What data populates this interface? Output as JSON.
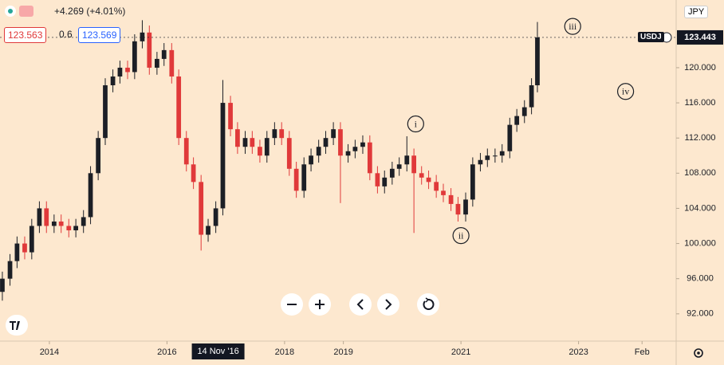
{
  "ui": {
    "change": "+4.269 (+4.01%)",
    "bid": "123.563",
    "spread": "0.6",
    "ask": "123.569",
    "currency": "JPY",
    "symbol_tag": "USDJ"
  },
  "chart_data": {
    "type": "candlestick",
    "x": [
      2013.2,
      2013.33,
      2013.45,
      2013.58,
      2013.7,
      2013.83,
      2013.95,
      2014.08,
      2014.2,
      2014.33,
      2014.45,
      2014.58,
      2014.7,
      2014.83,
      2014.95,
      2015.08,
      2015.2,
      2015.33,
      2015.45,
      2015.58,
      2015.7,
      2015.83,
      2015.95,
      2016.08,
      2016.2,
      2016.33,
      2016.45,
      2016.58,
      2016.7,
      2016.83,
      2016.95,
      2017.08,
      2017.2,
      2017.33,
      2017.45,
      2017.58,
      2017.7,
      2017.83,
      2017.95,
      2018.08,
      2018.2,
      2018.33,
      2018.45,
      2018.58,
      2018.7,
      2018.83,
      2018.95,
      2019.08,
      2019.2,
      2019.33,
      2019.45,
      2019.58,
      2019.7,
      2019.83,
      2019.95,
      2020.08,
      2020.2,
      2020.33,
      2020.45,
      2020.58,
      2020.7,
      2020.83,
      2020.95,
      2021.08,
      2021.2,
      2021.33,
      2021.45,
      2021.58,
      2021.7,
      2021.83,
      2021.95,
      2022.08,
      2022.2,
      2022.3
    ],
    "open": [
      94.5,
      96,
      98,
      100,
      99,
      102,
      104,
      102,
      102.5,
      102,
      101.5,
      102,
      103,
      108,
      112,
      118,
      119,
      120,
      119.5,
      123,
      124,
      120,
      121,
      122,
      119,
      112,
      109,
      107,
      101,
      102,
      104,
      116,
      113,
      111,
      112,
      111,
      110,
      112,
      113,
      112,
      108.5,
      106,
      109,
      110,
      111,
      112,
      113,
      110,
      110.5,
      111,
      111.5,
      108,
      106.5,
      107.5,
      108.5,
      109,
      110,
      108,
      107.5,
      107,
      106,
      105.5,
      104.5,
      103.3,
      105,
      109,
      109.5,
      110,
      110,
      110.5,
      113.5,
      114.5,
      115.5,
      118
    ],
    "high": [
      96.8,
      98.8,
      100.8,
      100.8,
      102.8,
      104.8,
      104.8,
      103.3,
      103.3,
      102.8,
      102.8,
      103.8,
      108.8,
      112.8,
      118.8,
      119.8,
      120.8,
      120.8,
      123.8,
      125.4,
      124.8,
      121.8,
      122.8,
      122.8,
      119.8,
      112.8,
      109.8,
      107.8,
      102.8,
      104.8,
      118.6,
      116.8,
      113.8,
      112.8,
      112.8,
      111.8,
      112.8,
      113.8,
      113.8,
      112.8,
      109.3,
      109.8,
      110.8,
      111.8,
      112.8,
      113.8,
      113.8,
      111.3,
      111.8,
      112.3,
      112.3,
      108.8,
      108.3,
      109.3,
      109.8,
      112.2,
      110.8,
      108.8,
      108.3,
      107.8,
      106.8,
      106.3,
      105.3,
      105.8,
      109.8,
      110.3,
      110.8,
      110.8,
      111.3,
      114.3,
      115.3,
      116.3,
      118.8,
      125.2
    ],
    "low": [
      93.5,
      95.2,
      97.2,
      98.2,
      98.2,
      101.2,
      101.2,
      101.2,
      101.2,
      100.7,
      100.7,
      101.2,
      102.2,
      107.2,
      111.2,
      117.2,
      118.2,
      118.7,
      118.7,
      122.2,
      119.2,
      119.2,
      120.2,
      118.2,
      111.2,
      108.2,
      106.2,
      99.2,
      100.2,
      101.2,
      103.2,
      112.2,
      110.2,
      110.2,
      110.2,
      109.2,
      109.2,
      111.2,
      111.2,
      107.7,
      105.2,
      105.2,
      108.2,
      109.2,
      110.2,
      111.2,
      104.6,
      109.2,
      109.7,
      110.2,
      107.2,
      105.7,
      105.7,
      106.7,
      107.7,
      108.2,
      101.2,
      106.7,
      106.2,
      105.2,
      104.7,
      103.7,
      102.5,
      102.5,
      104.2,
      108.2,
      108.7,
      109.2,
      109.2,
      109.7,
      112.7,
      113.7,
      114.7,
      117.2
    ],
    "close": [
      96,
      98,
      100,
      99,
      102,
      104,
      102,
      102.5,
      102,
      101.5,
      102,
      103,
      108,
      112,
      118,
      119,
      120,
      119.5,
      123,
      124,
      120,
      121,
      122,
      119,
      112,
      109,
      107,
      101,
      102,
      104,
      116,
      113,
      111,
      112,
      111,
      110,
      112,
      113,
      112,
      108.5,
      106,
      109,
      110,
      111,
      112,
      113,
      110,
      110.5,
      111,
      111.5,
      108,
      106.5,
      107.5,
      108.5,
      109,
      110,
      108,
      107.5,
      107,
      106,
      105.5,
      104.5,
      103.3,
      105,
      109,
      109.5,
      110,
      110,
      110.5,
      113.5,
      114.5,
      115.5,
      118,
      123.443
    ],
    "up_color": "#1c1f26",
    "down_color": "#e0393a",
    "xlim": [
      2013.16,
      2024.66
    ],
    "ylim": [
      88.9,
      127.7
    ],
    "xticks": [
      2014,
      2016,
      2018,
      2019,
      2021,
      2023,
      {
        "value": 2024.08,
        "label": "Feb"
      }
    ],
    "yticks": [
      {
        "value": 92,
        "label": "92.000"
      },
      {
        "value": 96,
        "label": "96.000"
      },
      {
        "value": 100,
        "label": "100.000"
      },
      {
        "value": 104,
        "label": "104.000"
      },
      {
        "value": 108,
        "label": "108.000"
      },
      {
        "value": 112,
        "label": "112.000"
      },
      {
        "value": 116,
        "label": "116.000"
      },
      {
        "value": 120,
        "label": "120.000"
      }
    ],
    "grid": false,
    "last_price": 123.443,
    "crosshair": {
      "x": 2016.87,
      "label": "14 Nov '16"
    },
    "annotations": [
      {
        "text": "i",
        "x": 2020.23,
        "y": 113.6
      },
      {
        "text": "ii",
        "x": 2021.0,
        "y": 100.9
      },
      {
        "text": "iii",
        "x": 2022.9,
        "y": 124.7
      },
      {
        "text": "iv",
        "x": 2023.8,
        "y": 117.3
      }
    ]
  }
}
